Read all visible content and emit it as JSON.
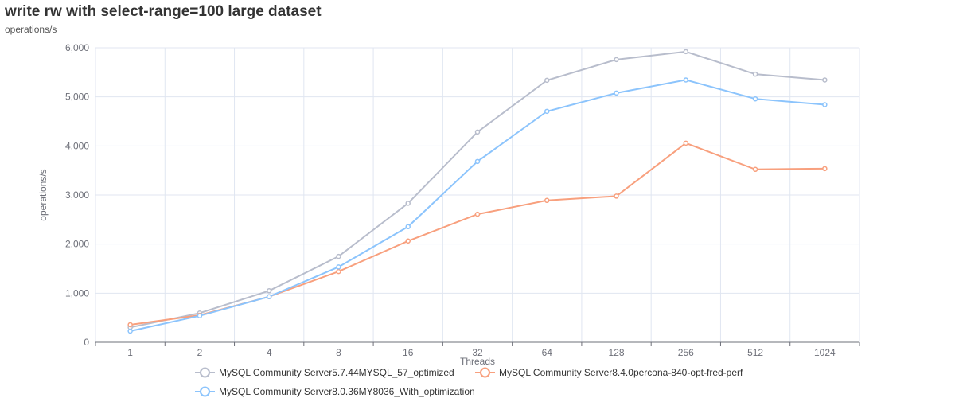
{
  "chart_data": {
    "type": "line",
    "title": "write rw with select-range=100 large dataset",
    "subtitle": "operations/s",
    "xlabel": "Threads",
    "ylabel": "operations/s",
    "categories": [
      "1",
      "2",
      "4",
      "8",
      "16",
      "32",
      "64",
      "128",
      "256",
      "512",
      "1024"
    ],
    "ylim": [
      0,
      6000
    ],
    "yticks": [
      "0",
      "1,000",
      "2,000",
      "3,000",
      "4,000",
      "5,000",
      "6,000"
    ],
    "grid": true,
    "legend_position": "bottom",
    "series": [
      {
        "name": "MySQL Community Server5.7.44MYSQL_57_optimized",
        "color": "#b8bdcc",
        "values": [
          303,
          595,
          1049,
          1750,
          2831,
          4284,
          5337,
          5759,
          5921,
          5462,
          5344
        ]
      },
      {
        "name": "MySQL Community Server8.4.0percona-840-opt-fred-perf",
        "color": "#f8a07e",
        "values": [
          357,
          551,
          929,
          1442,
          2063,
          2609,
          2890,
          2977,
          4057,
          3522,
          3538
        ]
      },
      {
        "name": "MySQL Community Server8.0.36MY8036_With_optimization",
        "color": "#8cc4fc",
        "values": [
          227,
          540,
          929,
          1535,
          2355,
          3684,
          4705,
          5078,
          5344,
          4959,
          4841
        ]
      }
    ]
  }
}
